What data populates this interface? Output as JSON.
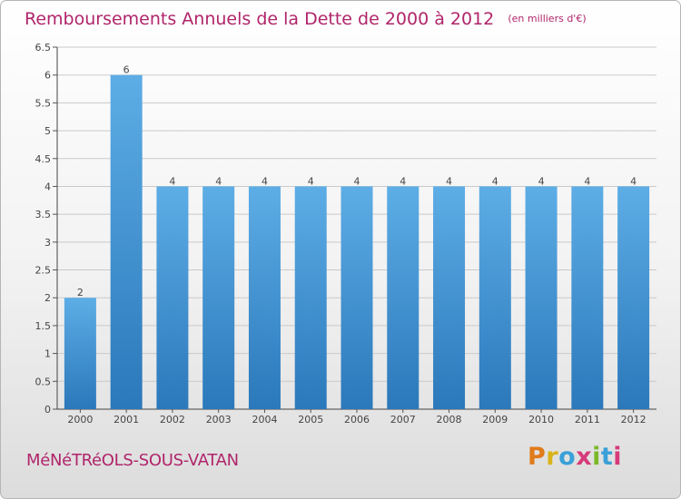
{
  "header": {
    "title": "Remboursements Annuels de la Dette de 2000 à 2012",
    "unit": "(en milliers d'€)"
  },
  "footer": {
    "commune": "MéNéTRéOLS-SOUS-VATAN",
    "logo": [
      "P",
      "r",
      "o",
      "x",
      "i",
      "t",
      "i"
    ]
  },
  "colors": {
    "title": "#b0256a",
    "bar_light": "#5dade6",
    "bar_dark": "#2b78ba",
    "grid": "#c9c9c9",
    "logo": [
      "#e07b1a",
      "#d9b31a",
      "#3aa0d8",
      "#d63a7a",
      "#7cb82a",
      "#3aa0d8",
      "#d63a7a"
    ]
  },
  "chart_data": {
    "type": "bar",
    "categories": [
      "2000",
      "2001",
      "2002",
      "2003",
      "2004",
      "2005",
      "2006",
      "2007",
      "2008",
      "2009",
      "2010",
      "2011",
      "2012"
    ],
    "values": [
      2,
      6,
      4,
      4,
      4,
      4,
      4,
      4,
      4,
      4,
      4,
      4,
      4
    ],
    "data_labels": [
      "2",
      "6",
      "4",
      "4",
      "4",
      "4",
      "4",
      "4",
      "4",
      "4",
      "4",
      "4",
      "4"
    ],
    "yticks": [
      0,
      0.5,
      1,
      1.5,
      2,
      2.5,
      3,
      3.5,
      4,
      4.5,
      5,
      5.5,
      6,
      6.5
    ],
    "ytick_labels": [
      "0",
      "0.5",
      "1",
      "1.5",
      "2",
      "2.5",
      "3",
      "3.5",
      "4",
      "4.5",
      "5",
      "5.5",
      "6",
      "6.5"
    ],
    "ylim": [
      0,
      6.5
    ],
    "grid": true
  }
}
